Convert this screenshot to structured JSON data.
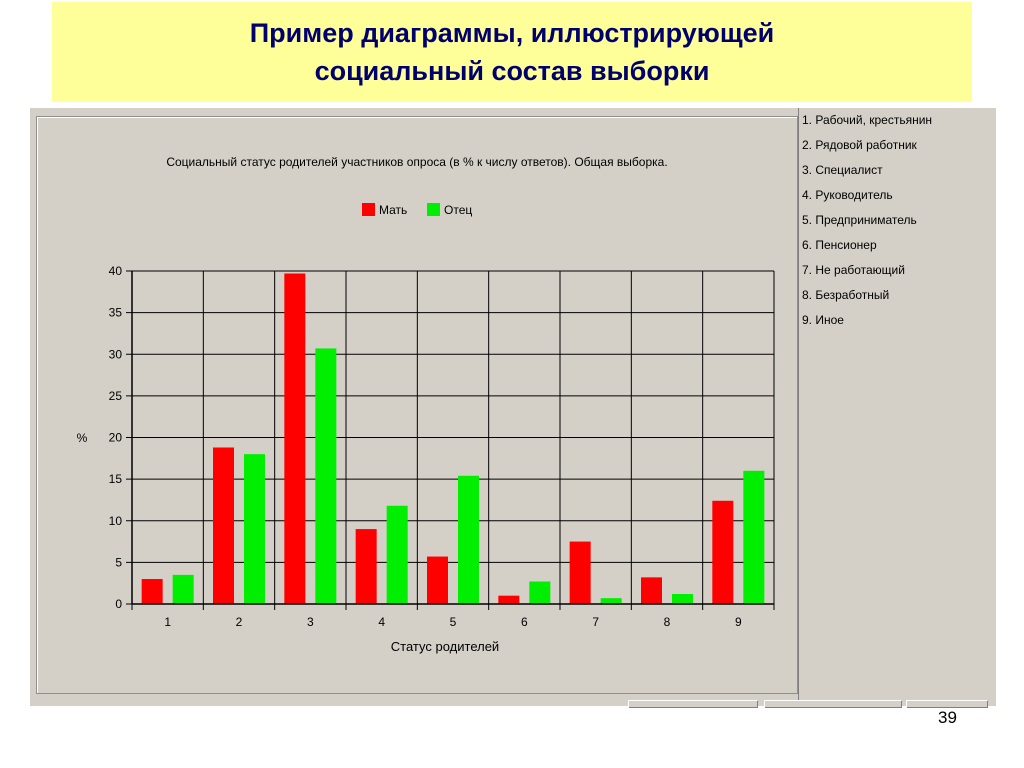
{
  "slide": {
    "title_line1": "Пример диаграммы, иллюстрирующей",
    "title_line2": "социальный состав выборки",
    "page_number": "39"
  },
  "status_list": [
    "1. Рабочий, крестьянин",
    "2. Рядовой работник",
    "3. Специалист",
    "4. Руководитель",
    "5. Предприниматель",
    "6. Пенсионер",
    "7. Не работающий",
    "8. Безработный",
    "9. Иное"
  ],
  "colors": {
    "mother": "#ff0000",
    "father": "#00ee00",
    "title_bg": "#ffff99",
    "title_text": "#00006e",
    "panel_bg": "#d4d0c8"
  },
  "chart_data": {
    "type": "bar",
    "title": "Социальный статус родителей участников опроса (в % к числу ответов). Общая выборка.",
    "xlabel": "Статус родителей",
    "ylabel": "%",
    "categories": [
      "1",
      "2",
      "3",
      "4",
      "5",
      "6",
      "7",
      "8",
      "9"
    ],
    "series": [
      {
        "name": "Мать",
        "color": "#ff0000",
        "values": [
          3.0,
          18.8,
          39.7,
          9.0,
          5.7,
          1.0,
          7.5,
          3.2,
          12.4
        ]
      },
      {
        "name": "Отец",
        "color": "#00ee00",
        "values": [
          3.5,
          18.0,
          30.7,
          11.8,
          15.4,
          2.7,
          0.7,
          1.2,
          16.0
        ]
      }
    ],
    "ylim": [
      0,
      40
    ],
    "yticks": [
      "0",
      "5",
      "10",
      "15",
      "20",
      "25",
      "30",
      "35",
      "40"
    ],
    "grid": true,
    "legend_position": "top-center"
  }
}
